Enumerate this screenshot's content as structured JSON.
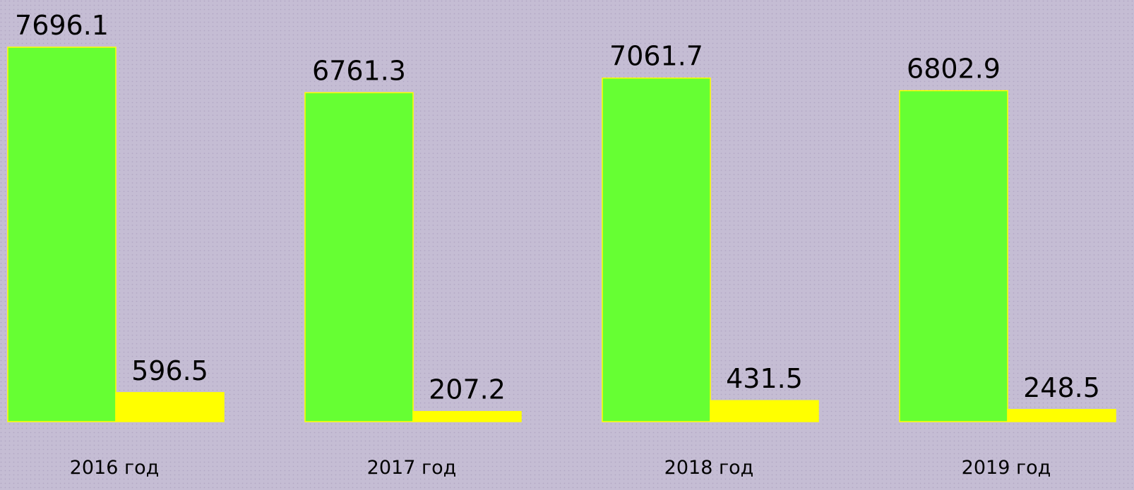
{
  "chart_data": {
    "type": "bar",
    "categories": [
      "2016 год",
      "2017 год",
      "2018 год",
      "2019 год"
    ],
    "series": [
      {
        "color": "#66ff33",
        "values": [
          7696.1,
          6761.3,
          7061.7,
          6802.9
        ]
      },
      {
        "color": "#ffff00",
        "values": [
          596.5,
          207.2,
          431.5,
          248.5
        ]
      }
    ],
    "ylim": [
      0,
      8000
    ]
  }
}
